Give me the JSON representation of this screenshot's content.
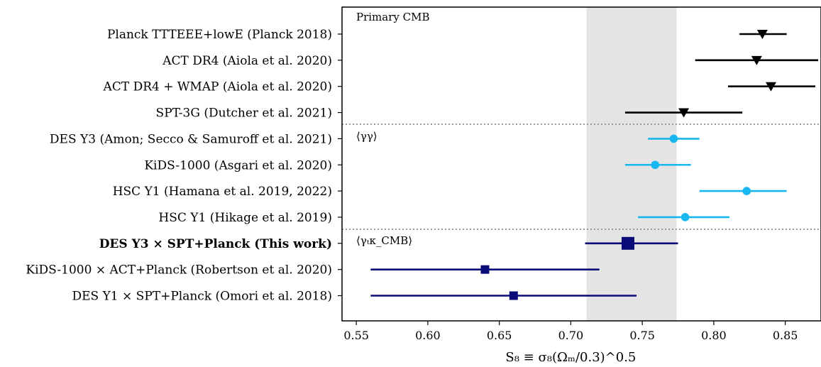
{
  "chart_data": {
    "type": "forest",
    "xlabel": "S₈ ≡ σ₈(Ωₘ/0.3)^0.5",
    "xlim": [
      0.54,
      0.875
    ],
    "xticks": [
      0.55,
      0.6,
      0.65,
      0.7,
      0.75,
      0.8,
      0.85
    ],
    "xtick_labels": [
      "0.55",
      "0.60",
      "0.65",
      "0.70",
      "0.75",
      "0.80",
      "0.85"
    ],
    "band": {
      "low": 0.711,
      "high": 0.774,
      "color": "#e4e4e4"
    },
    "sections": [
      {
        "label": "Primary CMB"
      },
      {
        "label": "⟨γγ⟩"
      },
      {
        "label": "⟨γₜκ_CMB⟩"
      }
    ],
    "colors": {
      "primary_cmb": "#000000",
      "shear": "#18b7f0",
      "cross": "#0a0a78",
      "separator": "#9a9a9a"
    },
    "rows": [
      {
        "label": "Planck TTTEEE+lowE (Planck 2018)",
        "value": 0.834,
        "low": 0.818,
        "high": 0.851,
        "marker": "triangle",
        "group": "primary_cmb"
      },
      {
        "label": "ACT DR4 (Aiola et al. 2020)",
        "value": 0.83,
        "low": 0.787,
        "high": 0.873,
        "marker": "triangle",
        "group": "primary_cmb"
      },
      {
        "label": "ACT DR4 + WMAP (Aiola et al. 2020)",
        "value": 0.84,
        "low": 0.81,
        "high": 0.871,
        "marker": "triangle",
        "group": "primary_cmb"
      },
      {
        "label": "SPT-3G (Dutcher et al. 2021)",
        "value": 0.779,
        "low": 0.738,
        "high": 0.82,
        "marker": "triangle",
        "group": "primary_cmb"
      },
      {
        "label": "DES Y3 (Amon; Secco & Samuroff et al. 2021)",
        "value": 0.772,
        "low": 0.754,
        "high": 0.79,
        "marker": "circle",
        "group": "shear"
      },
      {
        "label": "KiDS-1000 (Asgari et al. 2020)",
        "value": 0.759,
        "low": 0.738,
        "high": 0.784,
        "marker": "circle",
        "group": "shear"
      },
      {
        "label": "HSC Y1 (Hamana et al. 2019, 2022)",
        "value": 0.823,
        "low": 0.79,
        "high": 0.851,
        "marker": "circle",
        "group": "shear"
      },
      {
        "label": "HSC Y1 (Hikage et al. 2019)",
        "value": 0.78,
        "low": 0.747,
        "high": 0.811,
        "marker": "circle",
        "group": "shear"
      },
      {
        "label": "DES Y3 × SPT+Planck (This work)",
        "value": 0.74,
        "low": 0.71,
        "high": 0.775,
        "marker": "square-large",
        "group": "cross",
        "bold": true
      },
      {
        "label": "KiDS-1000 × ACT+Planck (Robertson et al. 2020)",
        "value": 0.64,
        "low": 0.56,
        "high": 0.72,
        "marker": "square",
        "group": "cross"
      },
      {
        "label": "DES Y1 × SPT+Planck (Omori et al. 2018)",
        "value": 0.66,
        "low": 0.56,
        "high": 0.746,
        "marker": "square",
        "group": "cross"
      }
    ]
  }
}
